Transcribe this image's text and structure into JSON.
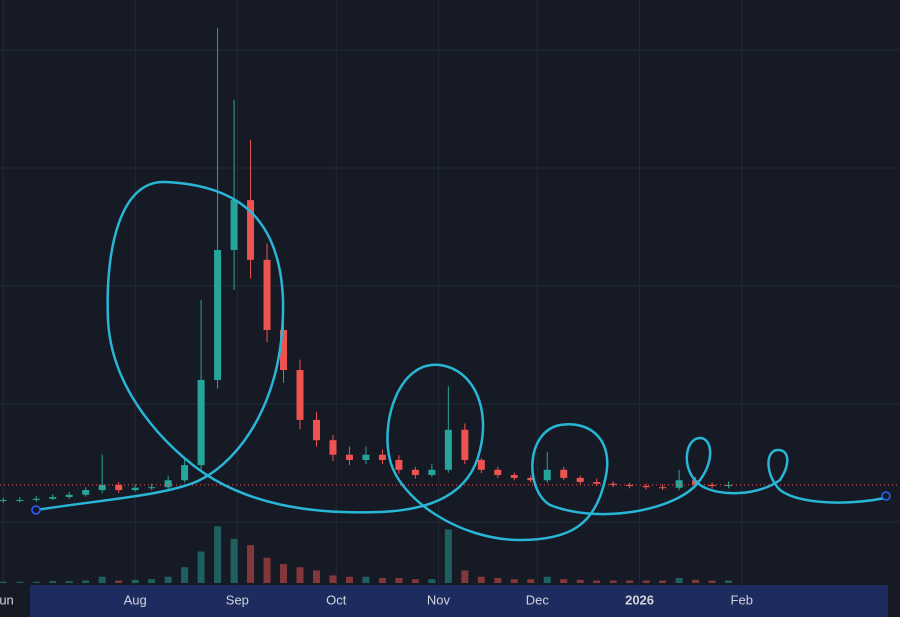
{
  "chart_data": {
    "type": "candlestick",
    "x": [
      21,
      26,
      31,
      36,
      41,
      46,
      51,
      56,
      61,
      66,
      71,
      76,
      81,
      86,
      91,
      96,
      101,
      106,
      111,
      116,
      121,
      126,
      131,
      136,
      141,
      146,
      151,
      156,
      161,
      166,
      171,
      176,
      181,
      186,
      191,
      196,
      201,
      206,
      211,
      216,
      221,
      226,
      231,
      236,
      241
    ],
    "open": [
      13.7,
      13.8,
      13.8,
      14.0,
      14.3,
      14.7,
      15.5,
      16.4,
      15.5,
      15.9,
      16.0,
      17.2,
      19.8,
      34.5,
      56.9,
      65.5,
      55.2,
      43.1,
      36.2,
      27.6,
      24.1,
      21.6,
      20.7,
      21.6,
      20.7,
      19.0,
      18.1,
      19.0,
      25.9,
      20.7,
      19.0,
      18.1,
      17.6,
      17.2,
      19.0,
      17.6,
      16.9,
      16.6,
      16.4,
      16.2,
      16.0,
      15.9,
      17.2,
      16.4,
      16.2
    ],
    "high": [
      14.2,
      14.3,
      14.5,
      14.8,
      15.2,
      16.0,
      21.6,
      16.9,
      16.5,
      16.6,
      18.0,
      21.0,
      48.3,
      95.2,
      82.8,
      75.9,
      58.0,
      45.0,
      38.0,
      29.0,
      25.0,
      23.0,
      23.0,
      22.5,
      21.5,
      19.5,
      20.0,
      33.4,
      27.0,
      21.0,
      19.5,
      18.5,
      18.0,
      22.1,
      19.5,
      18.0,
      17.5,
      17.0,
      16.8,
      16.6,
      16.5,
      19.0,
      17.8,
      16.8,
      17.0
    ],
    "low": [
      13.3,
      13.4,
      13.5,
      13.8,
      14.0,
      14.4,
      15.0,
      15.0,
      15.2,
      15.5,
      15.7,
      16.8,
      19.0,
      33.0,
      50.0,
      52.0,
      41.0,
      34.0,
      26.0,
      23.0,
      20.5,
      19.8,
      20.0,
      20.0,
      18.3,
      17.5,
      17.8,
      18.5,
      20.0,
      18.4,
      17.6,
      17.2,
      16.8,
      16.8,
      17.2,
      16.5,
      16.2,
      16.0,
      15.8,
      15.6,
      15.5,
      15.5,
      16.0,
      15.8,
      15.8
    ],
    "close": [
      13.8,
      13.8,
      14.0,
      14.3,
      14.7,
      15.5,
      16.4,
      15.5,
      15.9,
      16.0,
      17.2,
      19.8,
      34.5,
      56.9,
      65.5,
      55.2,
      43.1,
      36.2,
      27.6,
      24.1,
      21.6,
      20.7,
      21.6,
      20.7,
      19.0,
      18.1,
      19.0,
      25.9,
      20.7,
      19.0,
      18.1,
      17.6,
      17.2,
      19.0,
      17.6,
      16.9,
      16.6,
      16.4,
      16.2,
      16.0,
      15.9,
      17.2,
      16.4,
      16.2,
      16.4
    ],
    "volume": [
      2,
      2,
      2,
      3,
      3,
      4,
      10,
      4,
      5,
      6,
      10,
      25,
      50,
      90,
      70,
      60,
      40,
      30,
      25,
      20,
      12,
      10,
      10,
      8,
      8,
      6,
      6,
      85,
      20,
      10,
      8,
      6,
      6,
      10,
      6,
      5,
      4,
      4,
      4,
      4,
      4,
      8,
      5,
      4,
      4
    ],
    "up_color": "#26a69a",
    "down_color": "#ef5350",
    "last_price": 16.4,
    "xlim": [
      20,
      293
    ],
    "ylim": [
      0,
      100
    ],
    "volume_lim": [
      0,
      100
    ],
    "xticks": [
      {
        "value": 21,
        "label": "Jun"
      },
      {
        "value": 61,
        "label": "Aug"
      },
      {
        "value": 92,
        "label": "Sep"
      },
      {
        "value": 122,
        "label": "Oct"
      },
      {
        "value": 153,
        "label": "Nov"
      },
      {
        "value": 183,
        "label": "Dec"
      },
      {
        "value": 214,
        "label": "2026"
      },
      {
        "value": 245,
        "label": "Feb"
      }
    ],
    "grid": true
  }
}
